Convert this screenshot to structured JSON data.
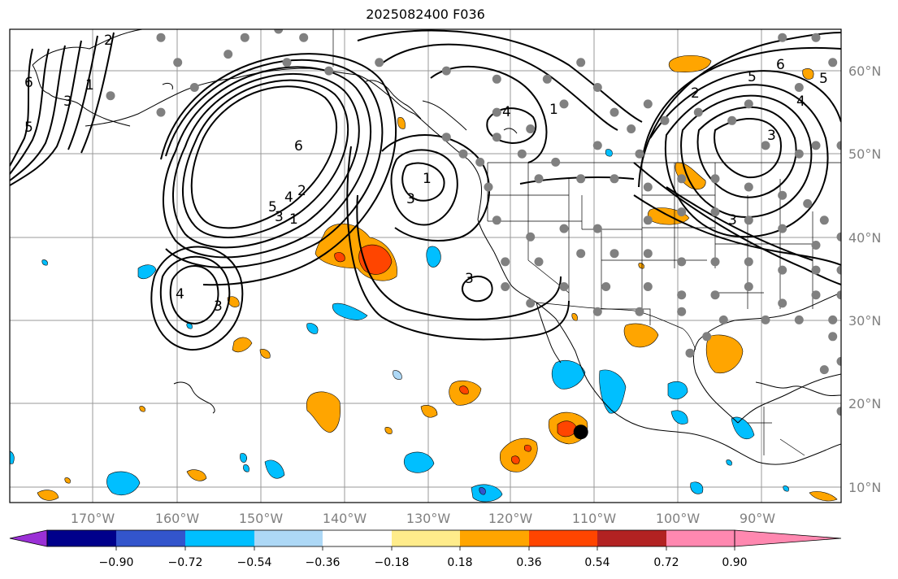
{
  "title": "2025082400 F036",
  "map": {
    "lon_range": [
      -180,
      -81
    ],
    "lat_range": [
      8,
      65
    ],
    "lat_labels": [
      "10°N",
      "20°N",
      "30°N",
      "40°N",
      "50°N",
      "60°N"
    ],
    "lon_labels": [
      "170°W",
      "160°W",
      "150°W",
      "140°W",
      "130°W",
      "120°W",
      "110°W",
      "100°W",
      "90°W"
    ],
    "contour_labels": [
      "2",
      "6",
      "5",
      "1",
      "3",
      "6",
      "5",
      "4",
      "3",
      "2",
      "1",
      "4",
      "3",
      "3",
      "1",
      "3",
      "4",
      "2",
      "1",
      "5",
      "6",
      "5",
      "4",
      "3",
      "3"
    ],
    "marker": {
      "name": "storm-center",
      "lon": -112,
      "lat": 16.5
    }
  },
  "colorbar": {
    "ticks": [
      "−0.90",
      "−0.72",
      "−0.54",
      "−0.36",
      "−0.18",
      "0.18",
      "0.36",
      "0.54",
      "0.72",
      "0.90"
    ],
    "colors": [
      "#9b30d6",
      "#00008b",
      "#3355cc",
      "#00bfff",
      "#add8f6",
      "#ffffff",
      "#ffec8b",
      "#ffa500",
      "#ff4500",
      "#b22222",
      "#ff88b0"
    ]
  },
  "stations": [
    [
      -162,
      64
    ],
    [
      -152,
      64
    ],
    [
      -148,
      65
    ],
    [
      -145,
      64
    ],
    [
      -160,
      61
    ],
    [
      -154,
      62
    ],
    [
      -168,
      57
    ],
    [
      -158,
      58
    ],
    [
      -162,
      55
    ],
    [
      -147,
      61
    ],
    [
      -142,
      60
    ],
    [
      -136,
      61
    ],
    [
      -128,
      60
    ],
    [
      -122,
      59
    ],
    [
      -116,
      59
    ],
    [
      -112,
      61
    ],
    [
      -110,
      58
    ],
    [
      -114,
      56
    ],
    [
      -108,
      55
    ],
    [
      -104,
      56
    ],
    [
      -106,
      53
    ],
    [
      -122,
      55
    ],
    [
      -118,
      53
    ],
    [
      -122,
      52
    ],
    [
      -128,
      52
    ],
    [
      -126,
      50
    ],
    [
      -124,
      49
    ],
    [
      -119,
      50
    ],
    [
      -115,
      49
    ],
    [
      -110,
      51
    ],
    [
      -105,
      50
    ],
    [
      -102,
      54
    ],
    [
      -98,
      55
    ],
    [
      -94,
      54
    ],
    [
      -92,
      56
    ],
    [
      -90,
      51
    ],
    [
      -86,
      50
    ],
    [
      -84,
      51
    ],
    [
      -86,
      58
    ],
    [
      -88,
      64
    ],
    [
      -84,
      64
    ],
    [
      -82,
      61
    ],
    [
      -81,
      51
    ],
    [
      -123,
      46
    ],
    [
      -117,
      47
    ],
    [
      -112,
      47
    ],
    [
      -108,
      47
    ],
    [
      -104,
      46
    ],
    [
      -100,
      47
    ],
    [
      -96,
      47
    ],
    [
      -92,
      46
    ],
    [
      -88,
      45
    ],
    [
      -85,
      44
    ],
    [
      -83,
      42
    ],
    [
      -122,
      42
    ],
    [
      -118,
      40
    ],
    [
      -114,
      41
    ],
    [
      -110,
      41
    ],
    [
      -104,
      42
    ],
    [
      -100,
      43
    ],
    [
      -96,
      43
    ],
    [
      -92,
      42
    ],
    [
      -88,
      41
    ],
    [
      -84,
      39
    ],
    [
      -81,
      40
    ],
    [
      -121,
      37
    ],
    [
      -117,
      37
    ],
    [
      -112,
      38
    ],
    [
      -108,
      38
    ],
    [
      -104,
      38
    ],
    [
      -100,
      37
    ],
    [
      -96,
      37
    ],
    [
      -92,
      37
    ],
    [
      -88,
      36
    ],
    [
      -84,
      36
    ],
    [
      -81,
      36
    ],
    [
      -121,
      34
    ],
    [
      -114,
      34
    ],
    [
      -109,
      34
    ],
    [
      -104,
      34
    ],
    [
      -100,
      33
    ],
    [
      -96,
      33
    ],
    [
      -92,
      34
    ],
    [
      -88,
      32
    ],
    [
      -84,
      33
    ],
    [
      -81,
      33
    ],
    [
      -118,
      32
    ],
    [
      -110,
      31
    ],
    [
      -105,
      31
    ],
    [
      -100,
      31
    ],
    [
      -95,
      30
    ],
    [
      -90,
      30
    ],
    [
      -86,
      30
    ],
    [
      -82,
      30
    ],
    [
      -97,
      28
    ],
    [
      -82,
      28
    ],
    [
      -81,
      25
    ],
    [
      -99,
      26
    ],
    [
      -83,
      24
    ],
    [
      -81,
      19
    ]
  ]
}
